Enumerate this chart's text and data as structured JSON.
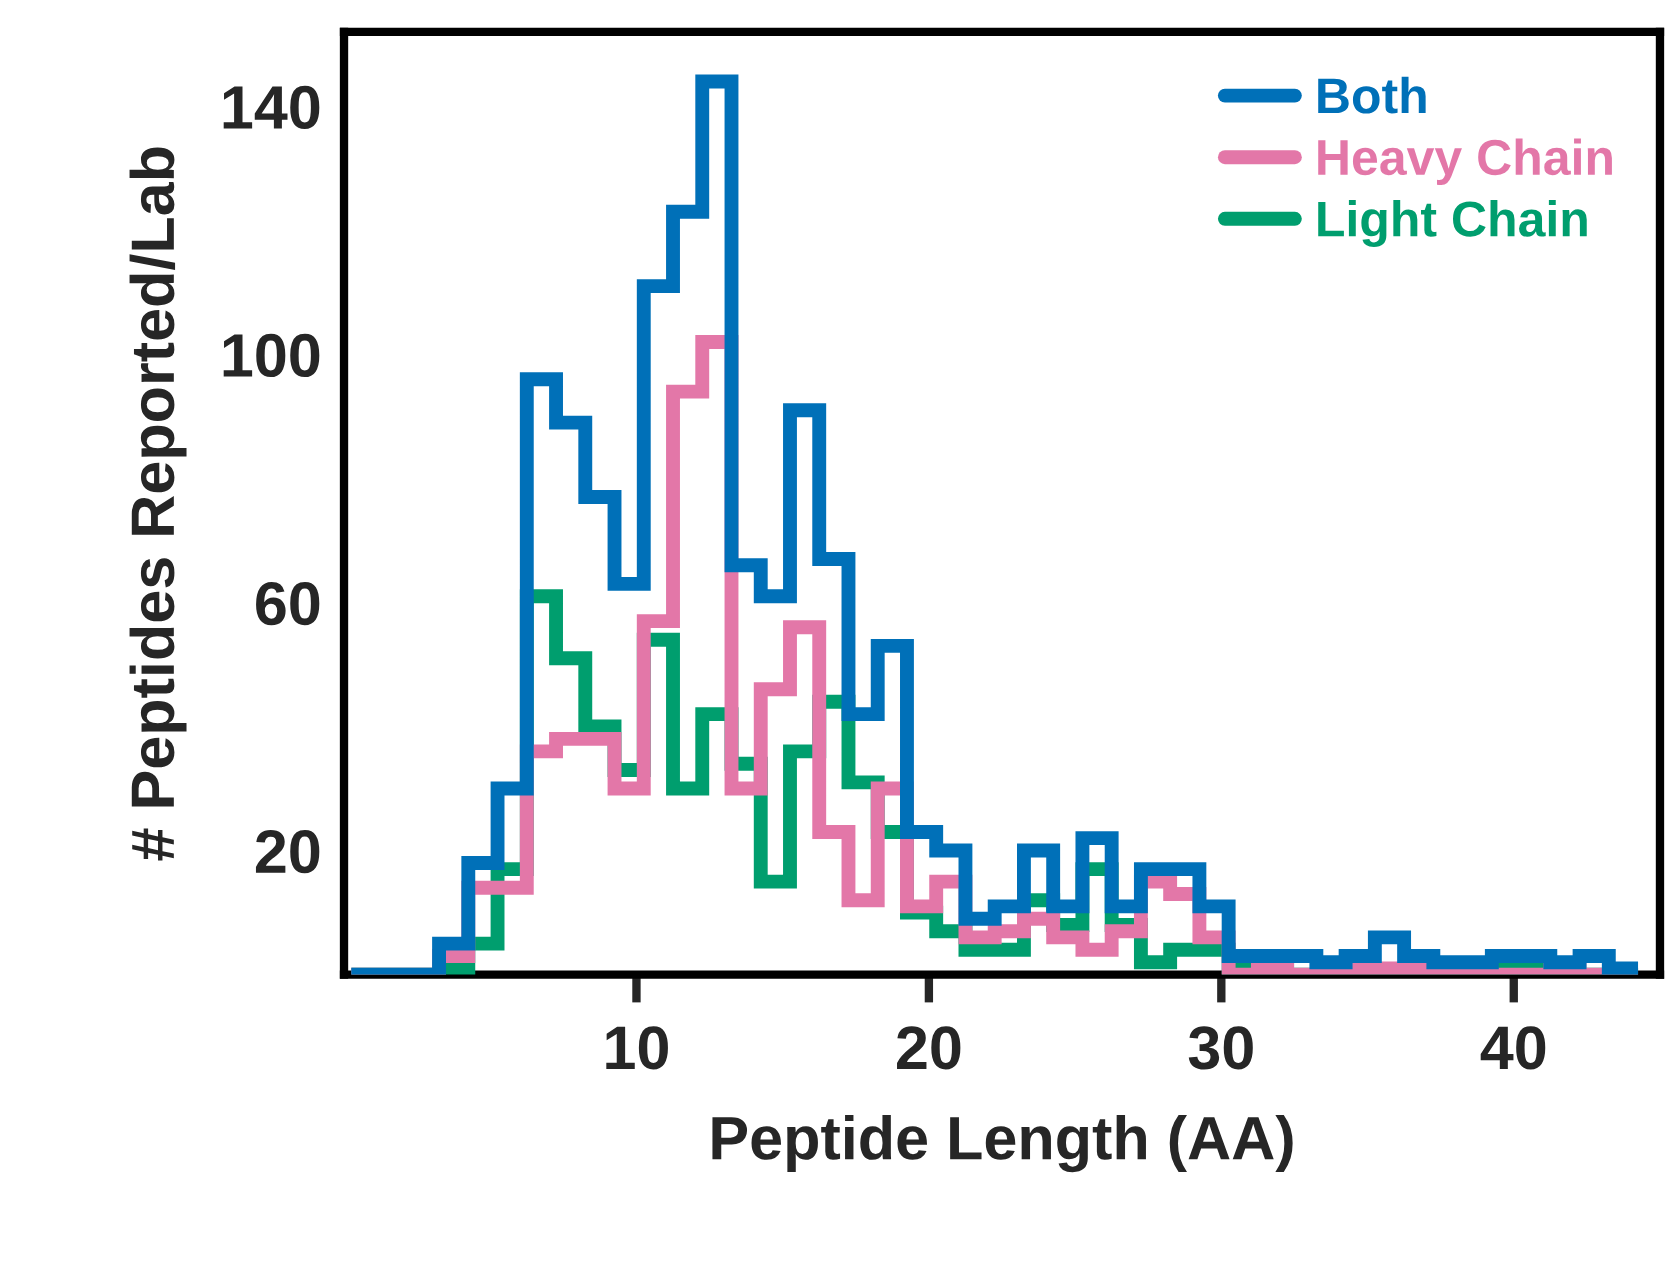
{
  "chart_data": {
    "type": "histogram",
    "xlabel": "Peptide Length (AA)",
    "ylabel": "# Peptides Reported/Lab",
    "bins": [
      0.25,
      1.25,
      2.25,
      3.25,
      4.25,
      5.25,
      6.25,
      7.25,
      8.25,
      9.25,
      10.25,
      11.25,
      12.25,
      13.25,
      14.25,
      15.25,
      16.25,
      17.25,
      18.25,
      19.25,
      20.25,
      21.25,
      22.25,
      23.25,
      24.25,
      25.25,
      26.25,
      27.25,
      28.25,
      29.25,
      30.25,
      31.25,
      32.25,
      33.25,
      34.25,
      35.25,
      36.25,
      37.25,
      38.25,
      39.25,
      40.25,
      41.25,
      42.25,
      43.25,
      44.25
    ],
    "series": [
      {
        "name": "Both",
        "color": "#0070b8",
        "values": [
          0,
          0,
          0,
          5,
          18,
          30,
          96,
          89,
          77,
          63,
          111,
          123,
          144,
          66,
          61,
          91,
          67,
          42,
          53,
          23,
          20,
          9,
          11,
          20,
          11,
          22,
          11,
          17,
          17,
          11,
          3,
          3,
          3,
          2,
          3,
          6,
          3,
          2,
          2,
          3,
          3,
          2,
          3,
          1
        ]
      },
      {
        "name": "Heavy Chain",
        "color": "#e377a8",
        "values": [
          0,
          0,
          0,
          3,
          14,
          14,
          36,
          38,
          38,
          30,
          57,
          94,
          102,
          30,
          46,
          56,
          23,
          12,
          30,
          11,
          15,
          6,
          7,
          9,
          6,
          4,
          7,
          15,
          13,
          6,
          0,
          1,
          0,
          0,
          1,
          1,
          1,
          0,
          0,
          0,
          0,
          1,
          0,
          0
        ]
      },
      {
        "name": "Light Chain",
        "color": "#009e6e",
        "values": [
          0,
          0,
          0,
          1,
          5,
          17,
          61,
          51,
          40,
          33,
          54,
          30,
          42,
          34,
          15,
          36,
          44,
          31,
          23,
          10,
          7,
          4,
          4,
          12,
          8,
          17,
          8,
          2,
          4,
          4,
          1,
          1,
          0,
          0,
          0,
          0,
          0,
          0,
          0,
          1,
          1,
          0,
          0,
          0
        ]
      }
    ],
    "xlim": [
      0,
      45
    ],
    "ylim": [
      0,
      152
    ],
    "xticks": [
      10,
      20,
      30,
      40
    ],
    "yticks": [
      20,
      60,
      100,
      140
    ],
    "legend": "top right"
  }
}
